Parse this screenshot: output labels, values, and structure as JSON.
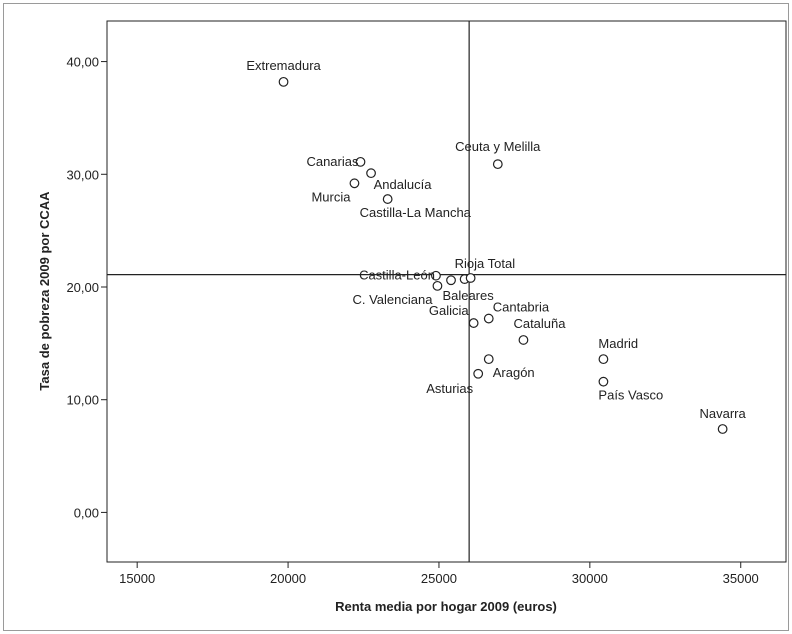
{
  "chart_data": {
    "type": "scatter",
    "xlabel": "Renta media por hogar 2009 (euros)",
    "ylabel": "Tasa de pobreza 2009 por CCAA",
    "xlim": [
      14000,
      36500
    ],
    "ylim": [
      -4.4,
      43.6
    ],
    "x_ticks": [
      15000,
      20000,
      25000,
      30000,
      35000
    ],
    "y_ticks": [
      0,
      10,
      20,
      30,
      40
    ],
    "y_tick_labels": [
      "0,00",
      "10,00",
      "20,00",
      "30,00",
      "40,00"
    ],
    "reference_lines": {
      "x": 26000,
      "y": 21.1
    },
    "grid": false,
    "points": [
      {
        "label": "Extremadura",
        "x": 19850,
        "y": 38.2,
        "anchor": "middle",
        "lx": 0,
        "ly": -12
      },
      {
        "label": "Canarias",
        "x": 22400,
        "y": 31.1,
        "anchor": "end",
        "lx": -2,
        "ly": 4
      },
      {
        "label": "",
        "x": 22750,
        "y": 30.1,
        "anchor": "start",
        "lx": 0,
        "ly": 0
      },
      {
        "label": "Murcia",
        "x": 22200,
        "y": 29.2,
        "anchor": "end",
        "lx": -4,
        "ly": 18
      },
      {
        "label": "Andalucía",
        "x": 23300,
        "y": 27.8,
        "anchor": "start",
        "lx": -14,
        "ly": -10
      },
      {
        "label": "Castilla-La Mancha",
        "x": 23300,
        "y": 27.8,
        "anchor": "start",
        "lx": -28,
        "ly": 18
      },
      {
        "label": "Ceuta y Melilla",
        "x": 26950,
        "y": 30.9,
        "anchor": "middle",
        "lx": 0,
        "ly": -13
      },
      {
        "label": "Castilla-León",
        "x": 24900,
        "y": 21.0,
        "anchor": "end",
        "lx": -1,
        "ly": 4
      },
      {
        "label": "",
        "x": 25400,
        "y": 20.6,
        "anchor": "start",
        "lx": 0,
        "ly": 0
      },
      {
        "label": "",
        "x": 25850,
        "y": 20.7,
        "anchor": "start",
        "lx": 0,
        "ly": 0
      },
      {
        "label": "Rioja Total",
        "x": 26050,
        "y": 20.8,
        "anchor": "start",
        "lx": -16,
        "ly": -10
      },
      {
        "label": "Baleares",
        "x": 24950,
        "y": 20.1,
        "anchor": "start",
        "lx": 5,
        "ly": 14
      },
      {
        "label": "C. Valenciana",
        "x": 24950,
        "y": 20.1,
        "anchor": "end",
        "lx": -5,
        "ly": 18
      },
      {
        "label": "Galicia",
        "x": 26150,
        "y": 16.8,
        "anchor": "end",
        "lx": -5,
        "ly": -8
      },
      {
        "label": "Cantabria",
        "x": 26650,
        "y": 17.2,
        "anchor": "start",
        "lx": 4,
        "ly": -7
      },
      {
        "label": "Cataluña",
        "x": 27800,
        "y": 15.3,
        "anchor": "start",
        "lx": -10,
        "ly": -12
      },
      {
        "label": "Aragón",
        "x": 26650,
        "y": 13.6,
        "anchor": "start",
        "lx": 4,
        "ly": 18
      },
      {
        "label": "Asturias",
        "x": 26300,
        "y": 12.3,
        "anchor": "end",
        "lx": -5,
        "ly": 19
      },
      {
        "label": "Madrid",
        "x": 30450,
        "y": 13.6,
        "anchor": "start",
        "lx": -5,
        "ly": -11
      },
      {
        "label": "País Vasco",
        "x": 30450,
        "y": 11.6,
        "anchor": "start",
        "lx": -5,
        "ly": 18
      },
      {
        "label": "Navarra",
        "x": 34400,
        "y": 7.4,
        "anchor": "middle",
        "lx": 0,
        "ly": -11
      }
    ]
  }
}
